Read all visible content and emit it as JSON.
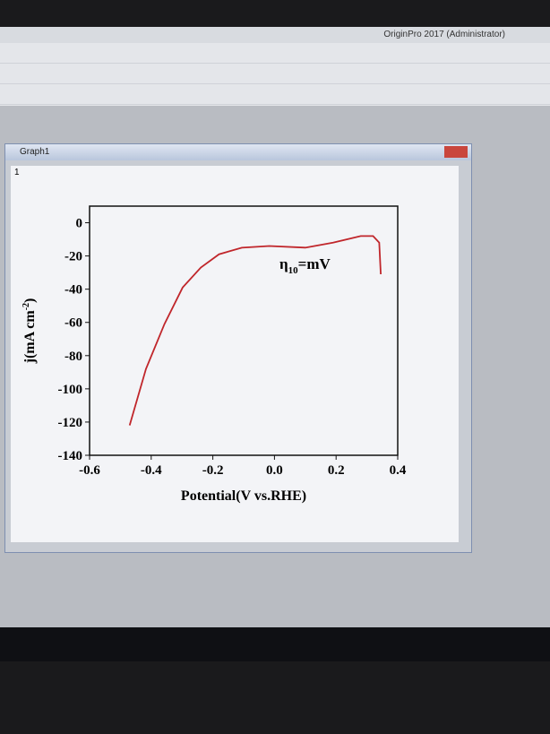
{
  "app_title": "OriginPro 2017 (Administrator)",
  "window_title": "Graph1",
  "layer_label": "1",
  "chart_data": {
    "type": "line",
    "xlabel": "Potential(V vs.RHE)",
    "ylabel": {
      "text": "j(mA cm",
      "superscript": "-2",
      "suffix": ")"
    },
    "annotation": {
      "symbol": "η",
      "subscript": "10",
      "suffix": "=mV"
    },
    "x": [
      -0.47,
      -0.417,
      -0.357,
      -0.298,
      -0.239,
      -0.18,
      -0.106,
      -0.017,
      0.1,
      0.19,
      0.28,
      0.32,
      0.34,
      0.345
    ],
    "series": [
      {
        "color": "#c0262b",
        "values": [
          -122,
          -88,
          -61,
          -39,
          -27,
          -19,
          -15,
          -14,
          -15,
          -12,
          -8,
          -8,
          -12,
          -31
        ]
      }
    ],
    "xlim": [
      -0.6,
      0.4
    ],
    "ylim": [
      -140,
      10
    ],
    "xticks": [
      -0.6,
      -0.4,
      -0.2,
      {
        "value": 0,
        "label": "0.0"
      },
      0.2,
      0.4
    ],
    "yticks": [
      0,
      -20,
      -40,
      -60,
      -80,
      -100,
      -120,
      -140
    ]
  }
}
